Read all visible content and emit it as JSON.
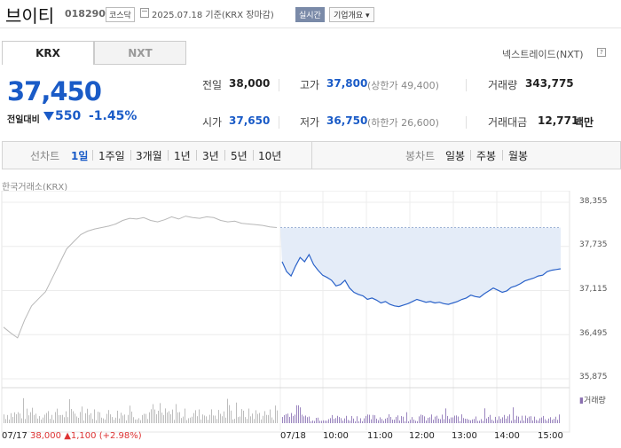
{
  "header": {
    "name": "브이티",
    "code": "018290",
    "market": "코스닥",
    "date_text": "2025.07.18 기준(KRX 장마감)",
    "realtime_label": "실시간",
    "company_info_label": "기업개요"
  },
  "exchange_tabs": [
    "KRX",
    "NXT"
  ],
  "nxt_link": "넥스트레이드(NXT)",
  "nxt_help": "?",
  "quote": {
    "price": "37,450",
    "change_label": "전일대비",
    "change_value": "550",
    "change_pct": "-1.45%",
    "direction": "down",
    "color_down": "#1a5bc7"
  },
  "stats": {
    "prev_label": "전일",
    "prev_value": "38,000",
    "high_label": "고가",
    "high_value": "37,800",
    "upper_limit": "(상한가 49,400)",
    "volume_label": "거래량",
    "volume_value": "343,775",
    "open_label": "시가",
    "open_value": "37,650",
    "low_label": "저가",
    "low_value": "36,750",
    "lower_limit": "(하한가 26,600)",
    "amount_label": "거래대금",
    "amount_value": "12,771",
    "amount_unit": "백만"
  },
  "period_bar": {
    "line_label": "선차트",
    "line_periods": [
      "1일",
      "1주일",
      "3개월",
      "1년",
      "3년",
      "5년",
      "10년"
    ],
    "active_period": "1일",
    "candle_label": "봉차트",
    "candle_periods": [
      "일봉",
      "주봉",
      "월봉"
    ]
  },
  "chart_source": "한국거래소(KRX)",
  "chart_data": {
    "type": "line",
    "y_ticks": [
      "38,355",
      "37,735",
      "37,115",
      "36,495",
      "35,875"
    ],
    "x_ticks": [
      "07/17",
      "07/18",
      "10:00",
      "11:00",
      "12:00",
      "13:00",
      "14:00",
      "15:00"
    ],
    "ylim": [
      35875,
      38355
    ],
    "prev_close": 38000,
    "volume_legend": "거래량",
    "prev_day_info": {
      "date": "07/17",
      "close": "38,000",
      "change": "▲1,100",
      "pct": "(+2.98%)"
    },
    "today_series": [
      37520,
      37380,
      37320,
      37460,
      37580,
      37520,
      37620,
      37480,
      37400,
      37330,
      37300,
      37260,
      37180,
      37200,
      37260,
      37150,
      37090,
      37060,
      37040,
      36990,
      37010,
      36980,
      36940,
      36960,
      36920,
      36900,
      36890,
      36910,
      36930,
      36960,
      36990,
      36970,
      36950,
      36960,
      36940,
      36950,
      36930,
      36920,
      36940,
      36960,
      36990,
      37010,
      37050,
      37030,
      37020,
      37070,
      37110,
      37150,
      37120,
      37090,
      37110,
      37160,
      37180,
      37210,
      37250,
      37270,
      37290,
      37320,
      37330,
      37380,
      37400,
      37410,
      37420
    ],
    "prev_series": [
      36600,
      36520,
      36450,
      36700,
      36900,
      37000,
      37100,
      37300,
      37500,
      37700,
      37800,
      37900,
      37950,
      37980,
      38000,
      38020,
      38050,
      38100,
      38130,
      38120,
      38140,
      38100,
      38080,
      38110,
      38150,
      38120,
      38160,
      38140,
      38130,
      38150,
      38140,
      38100,
      38080,
      38090,
      38060,
      38050,
      38040,
      38030,
      38010,
      38000
    ]
  }
}
